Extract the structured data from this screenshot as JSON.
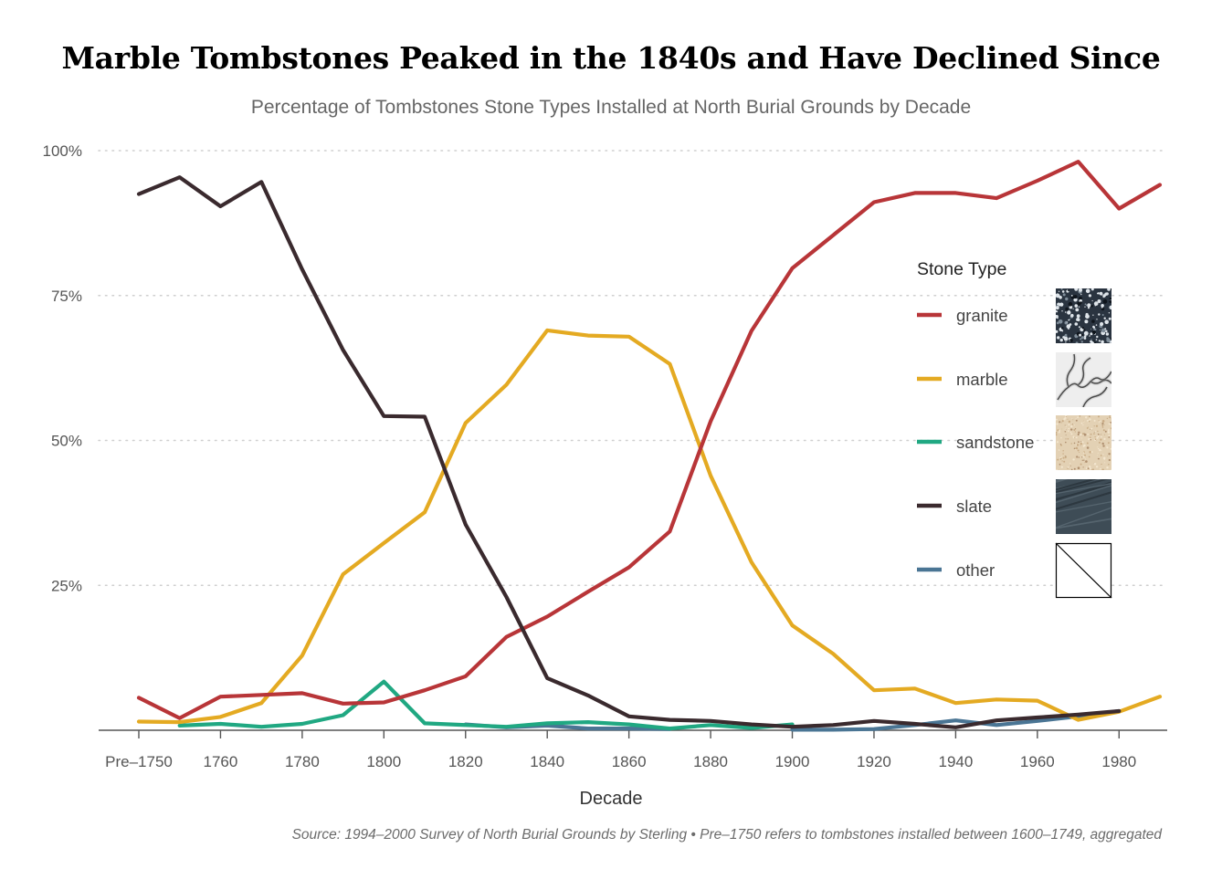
{
  "chart_data": {
    "type": "line",
    "title": "Marble Tombstones Peaked in the 1840s and Have Declined Since",
    "subtitle": "Percentage of Tombstones Stone Types Installed at North Burial Grounds by Decade",
    "xlabel": "Decade",
    "ylabel": "",
    "source": "Source: 1994–2000 Survey of North Burial Grounds by Sterling • Pre–1750 refers to tombstones installed between 1600–1749, aggregated",
    "x": [
      1740,
      1750,
      1760,
      1770,
      1780,
      1790,
      1800,
      1810,
      1820,
      1830,
      1840,
      1850,
      1860,
      1870,
      1880,
      1890,
      1900,
      1910,
      1920,
      1930,
      1940,
      1950,
      1960,
      1970,
      1980,
      1990
    ],
    "x_ticks": [
      {
        "value": 1740,
        "label": "Pre–1750"
      },
      {
        "value": 1760,
        "label": "1760"
      },
      {
        "value": 1780,
        "label": "1780"
      },
      {
        "value": 1800,
        "label": "1800"
      },
      {
        "value": 1820,
        "label": "1820"
      },
      {
        "value": 1840,
        "label": "1840"
      },
      {
        "value": 1860,
        "label": "1860"
      },
      {
        "value": 1880,
        "label": "1880"
      },
      {
        "value": 1900,
        "label": "1900"
      },
      {
        "value": 1920,
        "label": "1920"
      },
      {
        "value": 1940,
        "label": "1940"
      },
      {
        "value": 1960,
        "label": "1960"
      },
      {
        "value": 1980,
        "label": "1980"
      }
    ],
    "y_ticks": [
      {
        "value": 25,
        "label": "25%"
      },
      {
        "value": 50,
        "label": "50%"
      },
      {
        "value": 75,
        "label": "75%"
      },
      {
        "value": 100,
        "label": "100%"
      }
    ],
    "ylim": [
      0,
      100
    ],
    "xlim": [
      1740,
      1990
    ],
    "grid": "horizontal dotted",
    "legend": {
      "title": "Stone Type",
      "placement": "right"
    },
    "series": [
      {
        "name": "granite",
        "color": "#b83538",
        "swatch": "granite",
        "values": [
          5.6,
          2.1,
          5.8,
          6.1,
          6.4,
          4.6,
          4.8,
          6.9,
          9.3,
          16.1,
          19.6,
          23.9,
          28.1,
          34.3,
          53.3,
          68.9,
          79.7,
          85.4,
          91.1,
          92.7,
          92.7,
          91.8,
          94.8,
          98.1,
          90.0,
          94.1
        ]
      },
      {
        "name": "marble",
        "color": "#e4aa22",
        "swatch": "marble",
        "values": [
          1.5,
          1.4,
          2.3,
          4.7,
          12.9,
          26.9,
          32.3,
          37.6,
          53.0,
          59.6,
          69.0,
          68.1,
          67.9,
          63.2,
          43.9,
          29.0,
          18.1,
          13.2,
          6.9,
          7.2,
          4.7,
          5.3,
          5.1,
          1.8,
          3.2,
          5.8
        ]
      },
      {
        "name": "sandstone",
        "color": "#20a882",
        "swatch": "sandstone",
        "values": [
          null,
          0.8,
          1.1,
          0.6,
          1.1,
          2.6,
          8.4,
          1.2,
          0.9,
          0.6,
          1.2,
          1.4,
          1.0,
          0.3,
          0.9,
          0.4,
          1.0,
          null,
          null,
          null,
          null,
          null,
          null,
          null,
          null,
          null
        ]
      },
      {
        "name": "slate",
        "color": "#3a2a2e",
        "swatch": "slate",
        "values": [
          92.5,
          95.4,
          90.4,
          94.6,
          79.5,
          65.6,
          54.2,
          54.1,
          35.5,
          23.0,
          9.0,
          6.0,
          2.4,
          1.8,
          1.6,
          1.0,
          0.6,
          0.9,
          1.6,
          1.1,
          0.5,
          1.7,
          2.2,
          2.7,
          3.3,
          null
        ]
      },
      {
        "name": "other",
        "color": "#4a7594",
        "swatch": "other",
        "values": [
          null,
          null,
          null,
          null,
          null,
          null,
          null,
          null,
          1.0,
          0.5,
          0.8,
          0.3,
          0.3,
          0.2,
          null,
          null,
          0.1,
          0.1,
          0.2,
          0.9,
          1.7,
          0.9,
          1.6,
          2.4,
          3.3,
          null
        ]
      }
    ]
  }
}
